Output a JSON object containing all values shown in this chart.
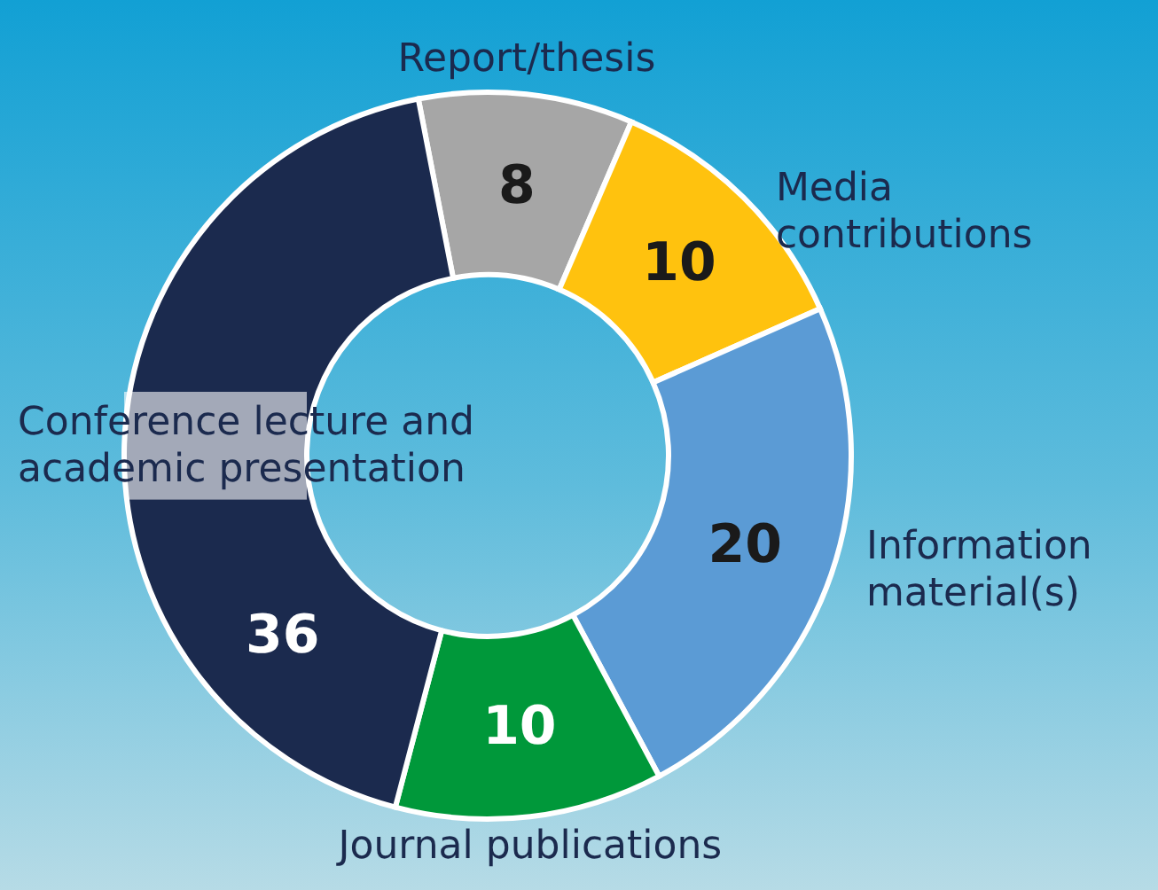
{
  "chart_data": {
    "type": "donut",
    "categories": [
      "Report/thesis",
      "Media contributions",
      "Information material(s)",
      "Journal publications",
      "Conference lecture and academic presentation"
    ],
    "values": [
      8,
      10,
      20,
      10,
      36
    ],
    "colors": [
      "#a6a6a6",
      "#ffc20e",
      "#5b9bd5",
      "#00983a",
      "#1b2a4e"
    ],
    "data_labels": true,
    "legend": false
  }
}
